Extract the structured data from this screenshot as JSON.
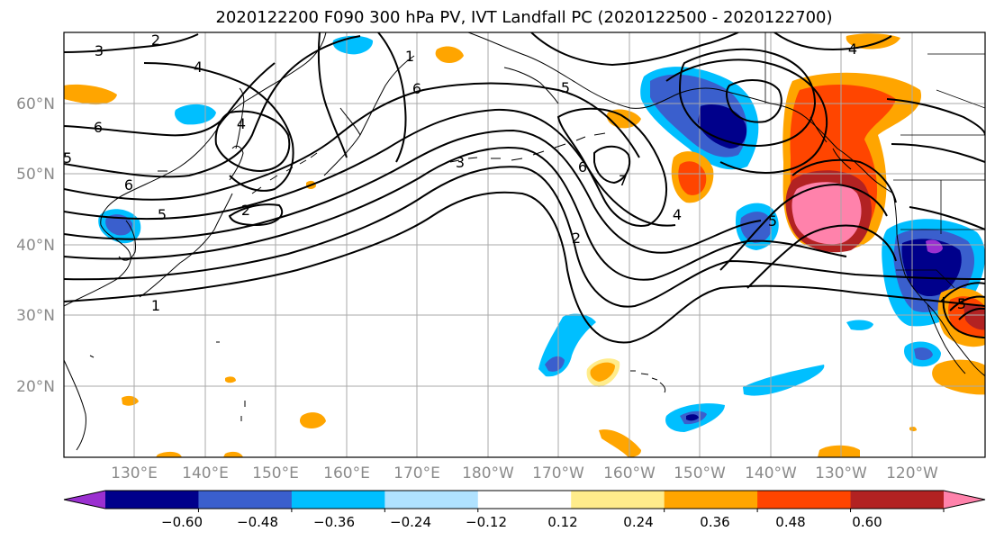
{
  "title": "2020122200 F090 300 hPa PV, IVT Landfall PC (2020122500 - 2020122700)",
  "lat_labels": [
    "60°N",
    "50°N",
    "40°N",
    "30°N",
    "20°N"
  ],
  "lon_labels": [
    "130°E",
    "140°E",
    "150°E",
    "160°E",
    "170°E",
    "180°W",
    "170°W",
    "160°W",
    "150°W",
    "140°W",
    "130°W",
    "120°W"
  ],
  "contour_labels": [
    "3",
    "2",
    "1",
    "4",
    "6",
    "5",
    "4",
    "6",
    "5",
    "6",
    "5",
    "2",
    "3",
    "2",
    "6",
    "7",
    "4",
    "5",
    "4",
    "5",
    "1"
  ],
  "colorbar": {
    "colors": [
      "#9b30d0",
      "#00008b",
      "#3a5fcd",
      "#00bfff",
      "#b0e2ff",
      "#ffffff",
      "#ffec8b",
      "#ffa500",
      "#ff4500",
      "#b22222",
      "#ff82ab"
    ],
    "ticks": [
      "−0.60",
      "−0.48",
      "−0.36",
      "−0.24",
      "−0.12",
      "0.12",
      "0.24",
      "0.36",
      "0.48",
      "0.60"
    ]
  }
}
